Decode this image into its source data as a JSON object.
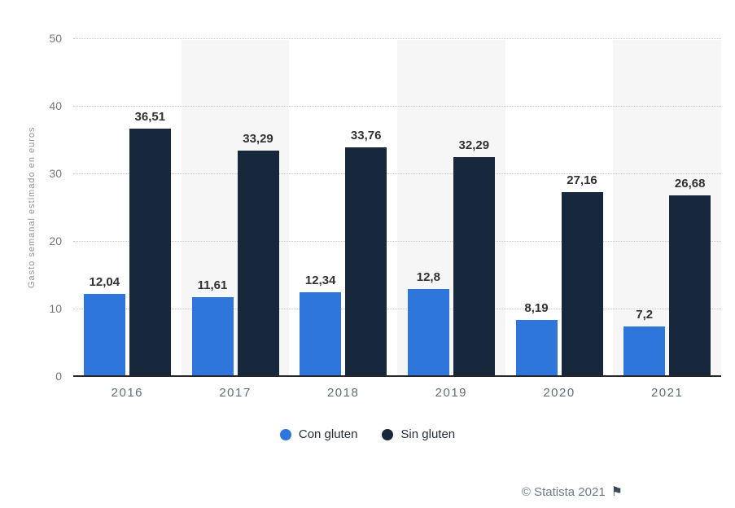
{
  "chart_data": {
    "type": "bar",
    "title": "",
    "categories": [
      "2016",
      "2017",
      "2018",
      "2019",
      "2020",
      "2021"
    ],
    "series": [
      {
        "name": "Con gluten",
        "color": "#2e76dc",
        "values": [
          12.04,
          11.61,
          12.34,
          12.8,
          8.19,
          7.2
        ],
        "labels": [
          "12,04",
          "11,61",
          "12,34",
          "12,8",
          "8,19",
          "7,2"
        ]
      },
      {
        "name": "Sin gluten",
        "color": "#17283c",
        "values": [
          36.51,
          33.29,
          33.76,
          32.29,
          27.16,
          26.68
        ],
        "labels": [
          "36,51",
          "33,29",
          "33,76",
          "32,29",
          "27,16",
          "26,68"
        ]
      }
    ],
    "xlabel": "",
    "ylabel": "Gasto semanal estimado en euros",
    "y_ticks": [
      0,
      10,
      20,
      30,
      40,
      50
    ],
    "ylim": [
      0,
      50
    ],
    "grid": "horizontal-dotted",
    "legend_position": "bottom",
    "band_color": "#f6f6f6"
  },
  "footer": {
    "copyright": "© Statista 2021",
    "flag_icon": "flag-icon",
    "flag_glyph": "⚑"
  },
  "colors": {
    "con_gluten": "#2e76dc",
    "sin_gluten": "#17283c",
    "gridline": "#c9c9c9",
    "axis_line": "#262626",
    "tick_text": "#767676",
    "year_text": "#606d79",
    "value_text": "#323232",
    "band": "#f6f6f6"
  }
}
